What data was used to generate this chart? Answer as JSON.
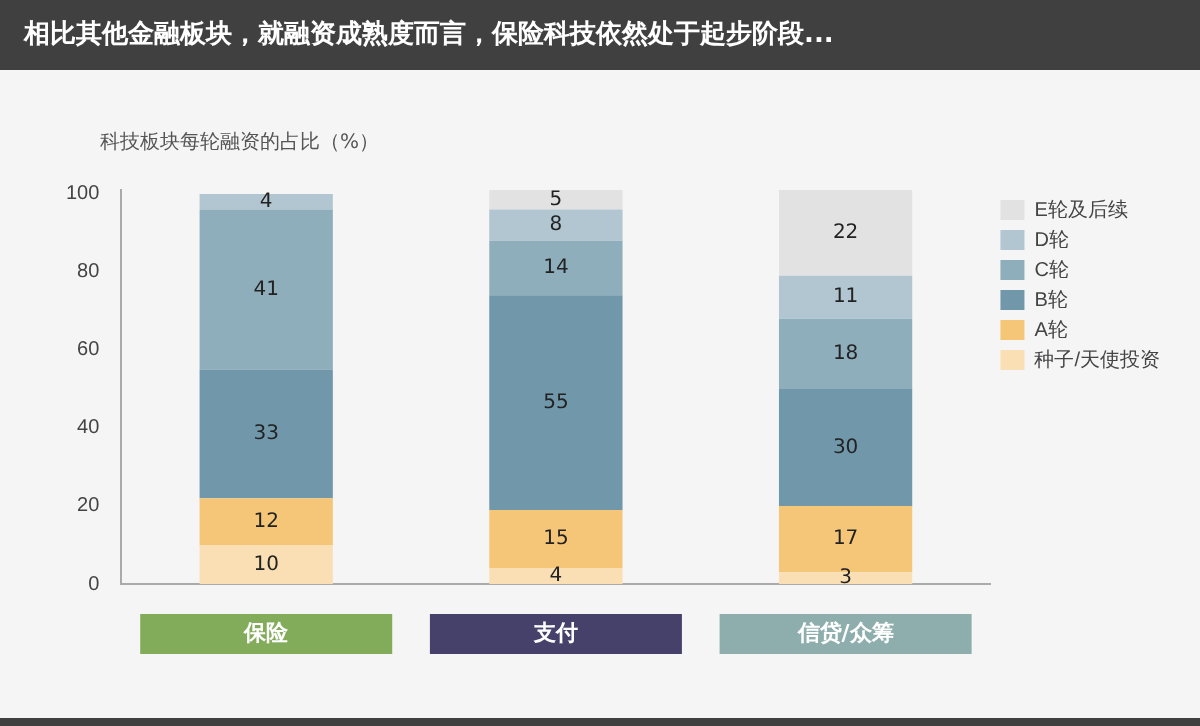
{
  "chart_data": {
    "type": "bar",
    "title": "相比其他金融板块，就融资成熟度而言，保险科技依然处于起步阶段...",
    "ylabel": "科技板块每轮融资的占比（%）",
    "categories": [
      "保险",
      "支付",
      "信贷/众筹"
    ],
    "stacked": true,
    "ylim": [
      0,
      101
    ],
    "yticks": [
      0,
      20,
      40,
      60,
      80,
      100
    ],
    "grid": false,
    "legend": "top right",
    "data_labels": true,
    "series": [
      {
        "name": "种子/天使投资",
        "color": "#f9dfb3",
        "values": [
          10,
          4,
          3
        ]
      },
      {
        "name": "A轮",
        "color": "#f5c678",
        "values": [
          12,
          15,
          17
        ]
      },
      {
        "name": "B轮",
        "color": "#7097aa",
        "values": [
          33,
          55,
          30
        ]
      },
      {
        "name": "C轮",
        "color": "#8eaebb",
        "values": [
          41,
          14,
          18
        ]
      },
      {
        "name": "D轮",
        "color": "#b1c6d0",
        "values": [
          4,
          8,
          11
        ]
      },
      {
        "name": "E轮及后续",
        "color": "#e2e2e2",
        "values": [
          null,
          5,
          22
        ]
      }
    ]
  }
}
